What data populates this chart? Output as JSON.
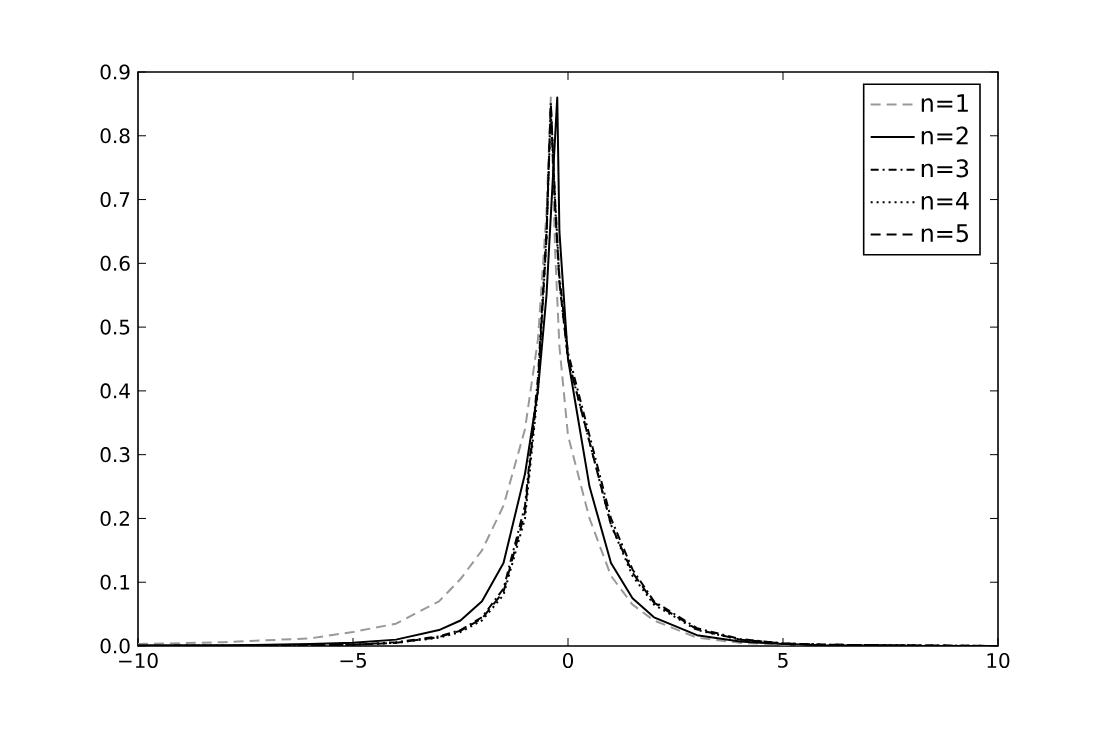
{
  "chart_data": {
    "type": "line",
    "xlim": [
      -10,
      10
    ],
    "ylim": [
      0,
      0.9
    ],
    "xticks": [
      {
        "value": -10,
        "label": "−10"
      },
      {
        "value": -5,
        "label": "−5"
      },
      0,
      5,
      10
    ],
    "yticks": [
      {
        "value": 0,
        "label": "0.0"
      },
      0.1,
      0.2,
      0.3,
      0.4,
      0.5,
      0.6,
      0.7,
      0.8,
      0.9
    ],
    "legend": "top right",
    "grid": false,
    "series": [
      {
        "name": "n=1",
        "color": "#999999",
        "line_style": "dashed",
        "x": [
          -10,
          -8,
          -6,
          -5,
          -4,
          -3,
          -2.5,
          -2,
          -1.5,
          -1,
          -0.7,
          -0.5,
          -0.4,
          -0.3,
          -0.2,
          0,
          0.5,
          1,
          1.5,
          2,
          3,
          4,
          5,
          6,
          8,
          10
        ],
        "values": [
          0.003,
          0.006,
          0.012,
          0.022,
          0.035,
          0.07,
          0.105,
          0.15,
          0.22,
          0.34,
          0.48,
          0.68,
          0.86,
          0.62,
          0.47,
          0.33,
          0.2,
          0.11,
          0.065,
          0.04,
          0.013,
          0.005,
          0.002,
          0.001,
          0,
          0
        ]
      },
      {
        "name": "n=2",
        "color": "#000000",
        "line_style": "solid",
        "x": [
          -10,
          -8,
          -6,
          -5,
          -4,
          -3,
          -2.5,
          -2,
          -1.5,
          -1,
          -0.7,
          -0.5,
          -0.25,
          -0.2,
          0,
          0.5,
          1,
          1.5,
          2,
          3,
          4,
          5,
          6,
          8,
          10
        ],
        "values": [
          0.001,
          0.001,
          0.003,
          0.005,
          0.01,
          0.025,
          0.04,
          0.07,
          0.13,
          0.27,
          0.4,
          0.55,
          0.86,
          0.65,
          0.45,
          0.25,
          0.13,
          0.075,
          0.045,
          0.017,
          0.007,
          0.003,
          0.001,
          0,
          0
        ]
      },
      {
        "name": "n=3",
        "color": "#000000",
        "line_style": "dashdot",
        "x": [
          -10,
          -6,
          -5,
          -4,
          -3,
          -2.5,
          -2,
          -1.5,
          -1,
          -0.7,
          -0.5,
          -0.4,
          -0.3,
          -0.2,
          0,
          0.5,
          1,
          1.5,
          2,
          3,
          4,
          5,
          6,
          8,
          10
        ],
        "values": [
          0,
          0.001,
          0.002,
          0.006,
          0.015,
          0.025,
          0.045,
          0.09,
          0.22,
          0.42,
          0.65,
          0.85,
          0.7,
          0.58,
          0.46,
          0.33,
          0.2,
          0.12,
          0.07,
          0.028,
          0.011,
          0.004,
          0.002,
          0.001,
          0
        ]
      },
      {
        "name": "n=4",
        "color": "#000000",
        "line_style": "dotted",
        "x": [
          -10,
          -6,
          -5,
          -4,
          -3,
          -2.5,
          -2,
          -1.5,
          -1,
          -0.7,
          -0.5,
          -0.4,
          -0.3,
          -0.2,
          0,
          0.5,
          1,
          1.5,
          2,
          3,
          4,
          5,
          6,
          8,
          10
        ],
        "values": [
          0,
          0.001,
          0.002,
          0.005,
          0.013,
          0.022,
          0.04,
          0.08,
          0.2,
          0.4,
          0.64,
          0.84,
          0.69,
          0.57,
          0.45,
          0.32,
          0.19,
          0.11,
          0.065,
          0.025,
          0.01,
          0.004,
          0.002,
          0.001,
          0
        ]
      },
      {
        "name": "n=5",
        "color": "#000000",
        "line_style": "dashed",
        "x": [
          -10,
          -6,
          -5,
          -4,
          -3,
          -2.5,
          -2,
          -1.5,
          -1,
          -0.7,
          -0.5,
          -0.4,
          -0.3,
          -0.2,
          0,
          0.5,
          1,
          1.5,
          2,
          3,
          4,
          5,
          6,
          8,
          10
        ],
        "values": [
          0,
          0.001,
          0.002,
          0.005,
          0.014,
          0.024,
          0.043,
          0.085,
          0.21,
          0.41,
          0.64,
          0.85,
          0.69,
          0.57,
          0.45,
          0.32,
          0.19,
          0.115,
          0.068,
          0.026,
          0.01,
          0.004,
          0.002,
          0.001,
          0
        ]
      }
    ]
  }
}
